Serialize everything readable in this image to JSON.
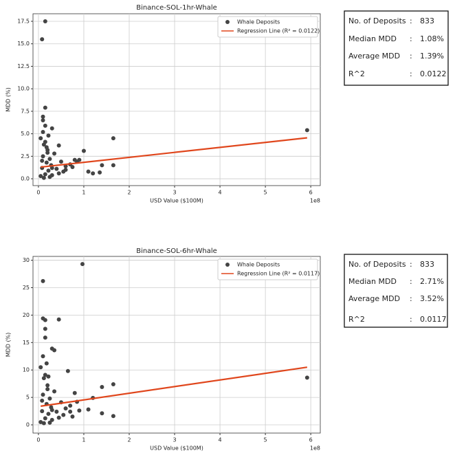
{
  "chart_data": [
    {
      "type": "scatter",
      "title": "Binance-SOL-1hr-Whale",
      "x_label": "USD Value ($100M)",
      "y_label": "MDD (%)",
      "x_offset_label": "1e8",
      "xlim": [
        -0.12,
        6.21
      ],
      "ylim": [
        -0.76,
        18.34
      ],
      "xticks": [
        0,
        1,
        2,
        3,
        4,
        5,
        6
      ],
      "yticks": [
        {
          "value": 0,
          "label": "0.0"
        },
        2.5,
        {
          "value": 5,
          "label": "5.0"
        },
        7.5,
        {
          "value": 10,
          "label": "10.0"
        },
        12.5,
        {
          "value": 15,
          "label": "15.0"
        },
        17.5
      ],
      "grid": true,
      "legend": "upper right",
      "series": [
        {
          "name": "Whale Deposits",
          "type": "scatter",
          "color": "#444444",
          "x": [
            0.08,
            0.15,
            0.15,
            0.1,
            0.1,
            0.15,
            0.3,
            1.65,
            5.92,
            1.0,
            0.45,
            1.4,
            1.65,
            1.1,
            1.2,
            1.35,
            0.8,
            0.75,
            0.6,
            0.05,
            0.08,
            0.1,
            0.12,
            0.15,
            0.18,
            0.2,
            0.22,
            0.25,
            0.28,
            0.3,
            0.35,
            0.4,
            0.45,
            0.5,
            0.55,
            0.6,
            0.7,
            0.85,
            0.9,
            0.05,
            0.1,
            0.15,
            0.2,
            0.25,
            0.12,
            0.18,
            0.08,
            0.3,
            0.22
          ],
          "values": [
            15.5,
            17.5,
            7.9,
            6.9,
            6.5,
            5.9,
            5.6,
            4.5,
            5.4,
            3.1,
            3.7,
            1.5,
            1.5,
            0.8,
            0.6,
            0.7,
            2.1,
            1.3,
            1.0,
            0.3,
            1.2,
            2.5,
            3.8,
            0.5,
            1.8,
            3.2,
            0.9,
            2.2,
            1.5,
            0.4,
            2.8,
            1.1,
            0.6,
            1.9,
            0.8,
            1.4,
            1.6,
            1.9,
            2.1,
            4.5,
            5.2,
            4.1,
            2.9,
            0.2,
            0.1,
            3.5,
            2.0,
            1.2,
            4.8
          ]
        },
        {
          "name": "Regression Line (R² = 0.0122)",
          "type": "line",
          "color": "#e0461c",
          "x": [
            0.05,
            5.92
          ],
          "values": [
            1.3,
            4.55
          ]
        }
      ]
    },
    {
      "type": "scatter",
      "title": "Binance-SOL-6hr-Whale",
      "x_label": "USD Value ($100M)",
      "y_label": "MDD (%)",
      "x_offset_label": "1e8",
      "xlim": [
        -0.12,
        6.21
      ],
      "ylim": [
        -1.5,
        30.7
      ],
      "xticks": [
        0,
        1,
        2,
        3,
        4,
        5,
        6
      ],
      "yticks": [
        0,
        5,
        10,
        15,
        20,
        25,
        30
      ],
      "grid": true,
      "legend": "upper right",
      "series": [
        {
          "name": "Whale Deposits",
          "type": "scatter",
          "color": "#444444",
          "x": [
            0.1,
            0.97,
            0.1,
            0.15,
            0.45,
            0.15,
            0.15,
            0.3,
            0.35,
            0.65,
            1.65,
            1.4,
            1.2,
            5.92,
            1.65,
            1.4,
            1.1,
            0.8,
            0.7,
            0.75,
            0.05,
            0.08,
            0.1,
            0.12,
            0.15,
            0.18,
            0.2,
            0.22,
            0.25,
            0.28,
            0.3,
            0.35,
            0.4,
            0.45,
            0.5,
            0.55,
            0.6,
            0.7,
            0.85,
            0.9,
            0.05,
            0.1,
            0.15,
            0.2,
            0.25,
            0.12,
            0.18,
            0.08,
            0.3,
            0.22
          ],
          "values": [
            26.2,
            29.3,
            19.4,
            19.1,
            19.2,
            17.5,
            15.9,
            13.9,
            13.6,
            9.8,
            7.4,
            6.9,
            4.9,
            8.6,
            1.6,
            2.1,
            2.8,
            5.8,
            2.4,
            1.5,
            0.5,
            2.5,
            5.5,
            8.5,
            1.2,
            3.8,
            7.2,
            2.0,
            4.8,
            3.2,
            0.9,
            6.1,
            2.4,
            1.3,
            4.1,
            1.8,
            3.0,
            3.5,
            4.2,
            2.6,
            10.5,
            12.5,
            9.1,
            6.5,
            0.4,
            0.3,
            11.2,
            4.4,
            2.7,
            8.8
          ]
        },
        {
          "name": "Regression Line (R² = 0.0117)",
          "type": "line",
          "color": "#e0461c",
          "x": [
            0.05,
            5.92
          ],
          "values": [
            3.4,
            10.5
          ]
        }
      ]
    }
  ],
  "stats_tables": [
    {
      "rows": [
        [
          "No. of Deposits",
          ":",
          "833"
        ],
        [
          "Median MDD",
          ":",
          "1.08%"
        ],
        [
          "Average MDD",
          ":",
          "1.39%"
        ],
        [
          "R^2",
          ":",
          "0.0122"
        ]
      ]
    },
    {
      "rows": [
        [
          "No. of Deposits",
          ":",
          "833"
        ],
        [
          "Median MDD",
          ":",
          "2.71%"
        ],
        [
          "Average MDD",
          ":",
          "3.52%"
        ],
        [
          "R^2",
          ":",
          "0.0117"
        ]
      ]
    }
  ]
}
